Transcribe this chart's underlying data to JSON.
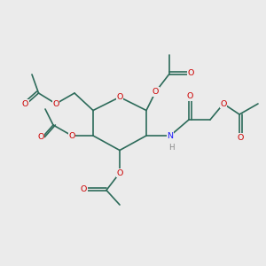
{
  "bg_color": "#ebebeb",
  "bond_color": "#2d6b5a",
  "o_color": "#cc0000",
  "n_color": "#1a1aff",
  "h_color": "#888888",
  "line_width": 1.2,
  "font_size": 6.8,
  "xlim": [
    0,
    10
  ],
  "ylim": [
    0,
    10
  ]
}
